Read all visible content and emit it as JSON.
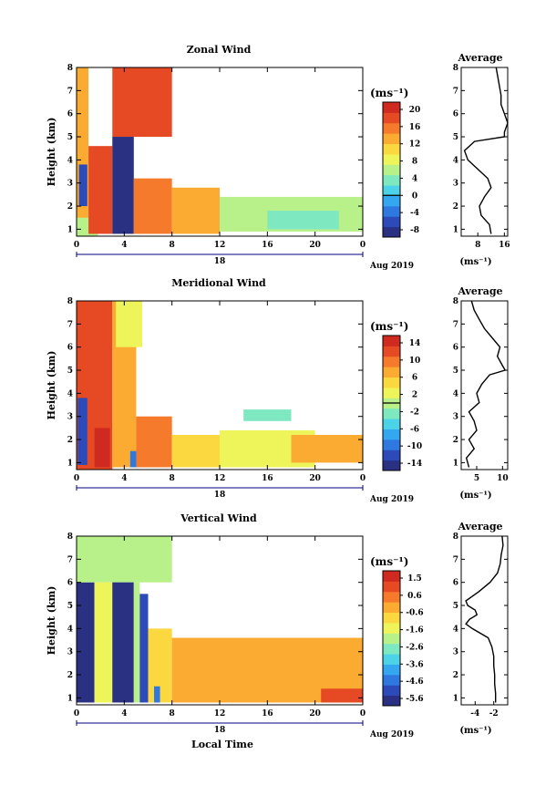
{
  "colors": {
    "colormap": [
      "#2a3082",
      "#2d4bb8",
      "#2f78e0",
      "#35a6f0",
      "#4cd3e8",
      "#7ee8c0",
      "#b8f08a",
      "#eef55a",
      "#fbd840",
      "#fbaa32",
      "#f67a2c",
      "#e64a24",
      "#cf2a20"
    ],
    "background": "#ffffff",
    "axis": "#000000",
    "date_bar": "#000080"
  },
  "shared": {
    "xlabel": "Local Time",
    "date_text": "Aug 2019",
    "day_label": "18",
    "x_tick_labels": [
      "0",
      "4",
      "8",
      "12",
      "16",
      "20",
      "0"
    ],
    "y_tick_labels": [
      "1",
      "2",
      "3",
      "4",
      "5",
      "6",
      "7",
      "8"
    ],
    "ylabel": "Height (km)",
    "unit_label": "(ms⁻¹)",
    "profile_title": "Average"
  },
  "chart_data": [
    {
      "type": "heatmap",
      "title": "Zonal Wind",
      "xlabel": "",
      "ylabel": "Height (km)",
      "xlim": [
        0,
        24
      ],
      "ylim": [
        0.7,
        8
      ],
      "colorbar": {
        "label": "(ms⁻¹)",
        "ticks": [
          "20",
          "16",
          "12",
          "8",
          "4",
          "0",
          "-4",
          "-8"
        ],
        "range": [
          -10,
          22
        ],
        "zero_line": 0
      },
      "regions": [
        {
          "x": [
            0,
            1.0
          ],
          "y": [
            0.7,
            8.0
          ],
          "value": 14
        },
        {
          "x": [
            0,
            1.8
          ],
          "y": [
            0.7,
            1.5
          ],
          "value": 6
        },
        {
          "x": [
            0.2,
            0.9
          ],
          "y": [
            2.0,
            3.8
          ],
          "value": -8
        },
        {
          "x": [
            1.0,
            3.0
          ],
          "y": [
            0.8,
            4.6
          ],
          "value": 19
        },
        {
          "x": [
            3.0,
            4.8
          ],
          "y": [
            0.8,
            5.0
          ],
          "value": -9
        },
        {
          "x": [
            3.0,
            8.0
          ],
          "y": [
            5.0,
            8.0
          ],
          "value": 18
        },
        {
          "x": [
            4.8,
            8.0
          ],
          "y": [
            0.8,
            3.2
          ],
          "value": 17
        },
        {
          "x": [
            8.0,
            12.0
          ],
          "y": [
            0.8,
            2.8
          ],
          "value": 13
        },
        {
          "x": [
            12.0,
            24.0
          ],
          "y": [
            0.9,
            2.4
          ],
          "value": 7
        },
        {
          "x": [
            16.0,
            22.0
          ],
          "y": [
            1.0,
            1.8
          ],
          "value": 4
        }
      ],
      "profile": {
        "title": "Average",
        "xlabel": "(ms⁻¹)",
        "xticks": [
          "8",
          "16"
        ],
        "xlim": [
          3,
          17
        ],
        "height": [
          0.8,
          1.2,
          1.6,
          2.0,
          2.4,
          2.8,
          3.2,
          3.6,
          4.0,
          4.4,
          4.8,
          5.0,
          5.2,
          5.6,
          6.0,
          6.4,
          6.8,
          7.2,
          7.6,
          8.0
        ],
        "value": [
          12,
          11.5,
          9,
          8.5,
          10,
          12,
          11,
          8,
          5,
          4,
          7,
          16,
          16,
          17,
          16,
          15,
          15,
          14.5,
          14,
          13.5
        ]
      }
    },
    {
      "type": "heatmap",
      "title": "Meridional Wind",
      "xlabel": "",
      "ylabel": "Height (km)",
      "xlim": [
        0,
        24
      ],
      "ylim": [
        0.7,
        8
      ],
      "colorbar": {
        "label": "(ms⁻¹)",
        "ticks": [
          "14",
          "10",
          "6",
          "2",
          "-2",
          "-6",
          "-10",
          "-14"
        ],
        "range": [
          -16,
          16
        ],
        "zero_line": 0
      },
      "regions": [
        {
          "x": [
            0,
            3.0
          ],
          "y": [
            0.7,
            8.0
          ],
          "value": 12
        },
        {
          "x": [
            0.1,
            0.9
          ],
          "y": [
            0.9,
            3.8
          ],
          "value": -13
        },
        {
          "x": [
            1.5,
            2.8
          ],
          "y": [
            0.8,
            2.5
          ],
          "value": 15
        },
        {
          "x": [
            3.0,
            5.0
          ],
          "y": [
            0.8,
            8.0
          ],
          "value": 9
        },
        {
          "x": [
            3.3,
            5.5
          ],
          "y": [
            6.0,
            8.0
          ],
          "value": 2
        },
        {
          "x": [
            4.5,
            5.8
          ],
          "y": [
            0.8,
            1.5
          ],
          "value": -12
        },
        {
          "x": [
            5.0,
            8.0
          ],
          "y": [
            0.8,
            3.0
          ],
          "value": 10
        },
        {
          "x": [
            8.0,
            12.0
          ],
          "y": [
            0.8,
            2.2
          ],
          "value": 6
        },
        {
          "x": [
            12.0,
            20.0
          ],
          "y": [
            0.8,
            2.4
          ],
          "value": 2
        },
        {
          "x": [
            14.0,
            18.0
          ],
          "y": [
            2.8,
            3.3
          ],
          "value": -3
        },
        {
          "x": [
            18.0,
            24.0
          ],
          "y": [
            1.0,
            2.2
          ],
          "value": 8
        }
      ],
      "profile": {
        "title": "Average",
        "xlabel": "(ms⁻¹)",
        "xticks": [
          "5",
          "10"
        ],
        "xlim": [
          2,
          11
        ],
        "height": [
          0.8,
          1.2,
          1.6,
          2.0,
          2.4,
          2.8,
          3.2,
          3.6,
          4.0,
          4.4,
          4.8,
          5.0,
          5.2,
          5.6,
          6.0,
          6.4,
          6.8,
          7.2,
          7.6,
          8.0
        ],
        "value": [
          3.5,
          3.0,
          4.5,
          3.5,
          5.0,
          4.5,
          3.5,
          5.5,
          5.0,
          6.0,
          7.5,
          10.5,
          10.0,
          9.0,
          9.5,
          8.0,
          6.5,
          5.5,
          4.5,
          4.0
        ]
      }
    },
    {
      "type": "heatmap",
      "title": "Vertical Wind",
      "xlabel": "Local Time",
      "ylabel": "Height (km)",
      "xlim": [
        0,
        24
      ],
      "ylim": [
        0.7,
        8
      ],
      "colorbar": {
        "label": "(ms⁻¹)",
        "ticks": [
          "1.5",
          "0.6",
          "-0.6",
          "-1.6",
          "-2.6",
          "-3.6",
          "-4.6",
          "-5.6"
        ],
        "range": [
          -6,
          2
        ],
        "zero_line": null
      },
      "regions": [
        {
          "x": [
            0,
            1.5
          ],
          "y": [
            0.8,
            6.0
          ],
          "value": -5.8
        },
        {
          "x": [
            0,
            8.0
          ],
          "y": [
            6.0,
            8.0
          ],
          "value": -1.8
        },
        {
          "x": [
            1.5,
            3.0
          ],
          "y": [
            0.8,
            6.0
          ],
          "value": -1.5
        },
        {
          "x": [
            3.0,
            4.8
          ],
          "y": [
            0.8,
            6.0
          ],
          "value": -5.8
        },
        {
          "x": [
            4.8,
            5.3
          ],
          "y": [
            0.8,
            6.0
          ],
          "value": -2.2
        },
        {
          "x": [
            5.3,
            6.0
          ],
          "y": [
            0.8,
            5.5
          ],
          "value": -5.5
        },
        {
          "x": [
            6.0,
            8.0
          ],
          "y": [
            0.8,
            4.0
          ],
          "value": -1.0
        },
        {
          "x": [
            6.5,
            7.0
          ],
          "y": [
            0.8,
            1.5
          ],
          "value": -5.0
        },
        {
          "x": [
            8.0,
            24.0
          ],
          "y": [
            0.8,
            3.6
          ],
          "value": 0.3
        },
        {
          "x": [
            20.5,
            24.0
          ],
          "y": [
            0.8,
            1.4
          ],
          "value": 1.4
        }
      ],
      "profile": {
        "title": "Average",
        "xlabel": "(ms⁻¹)",
        "xticks": [
          "-4",
          "-2"
        ],
        "xlim": [
          -5.5,
          -0.5
        ],
        "height": [
          0.8,
          1.2,
          1.6,
          2.0,
          2.4,
          2.8,
          3.2,
          3.6,
          4.0,
          4.2,
          4.4,
          4.6,
          4.8,
          5.0,
          5.2,
          5.6,
          6.0,
          6.4,
          6.8,
          7.2,
          7.6,
          8.0
        ],
        "value": [
          -1.8,
          -1.8,
          -1.9,
          -1.9,
          -2.0,
          -2.0,
          -2.2,
          -2.6,
          -4.3,
          -5.0,
          -4.6,
          -3.8,
          -4.0,
          -4.8,
          -5.0,
          -3.6,
          -2.4,
          -1.6,
          -1.3,
          -1.2,
          -1.0,
          -1.1
        ]
      }
    }
  ]
}
